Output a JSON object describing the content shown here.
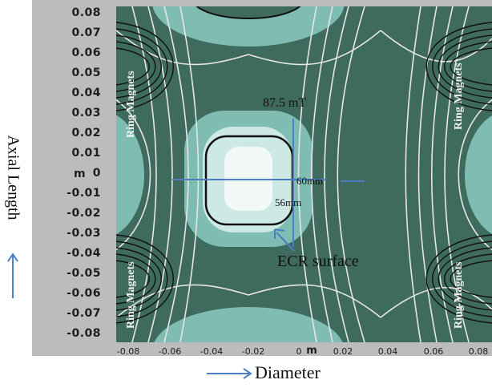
{
  "y_axis": {
    "unit": "m",
    "ticks": [
      "0.08",
      "0.07",
      "0.06",
      "0.05",
      "0.04",
      "0.03",
      "0.02",
      "0.01",
      "0",
      "-0.01",
      "-0.02",
      "-0.03",
      "-0.04",
      "-0.05",
      "-0.06",
      "-0.07",
      "-0.08"
    ]
  },
  "x_axis": {
    "unit": "m",
    "ticks": [
      "-0.08",
      "-0.06",
      "-0.04",
      "-0.02",
      "0",
      "0.02",
      "0.04",
      "0.06",
      "0.08"
    ]
  },
  "labels": {
    "axial_length": "Axial Length",
    "diameter": "Diameter",
    "ring_magnets": "Ring Magnets",
    "field_strength": "87.5 mT",
    "width_60": "60mm",
    "width_56": "56mm",
    "ecr_surface": "ECR surface"
  },
  "colors": {
    "dark_field": "#3f6a5e",
    "mid_field": "#7fbdb3",
    "light_field": "#cde9e5",
    "core": "#f2f8f6",
    "contour": "#e6e6e6",
    "ecr_line": "#111111",
    "arrow": "#4a7fc1"
  }
}
